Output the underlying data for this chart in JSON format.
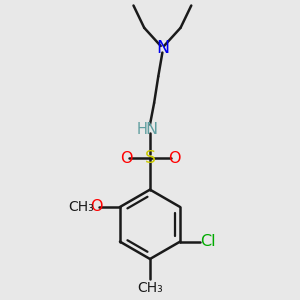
{
  "background_color": "#e8e8e8",
  "bond_color": "#1a1a1a",
  "bond_width": 1.8,
  "fig_size": [
    3.0,
    3.0
  ],
  "dpi": 100,
  "xlim": [
    -0.5,
    1.5
  ],
  "ylim": [
    -1.8,
    1.8
  ],
  "colors": {
    "N": "#0000ee",
    "O": "#ff0000",
    "S": "#cccc00",
    "Cl": "#00aa00",
    "H": "#5f9ea0",
    "NH": "#5f9ea0",
    "C": "#1a1a1a"
  }
}
